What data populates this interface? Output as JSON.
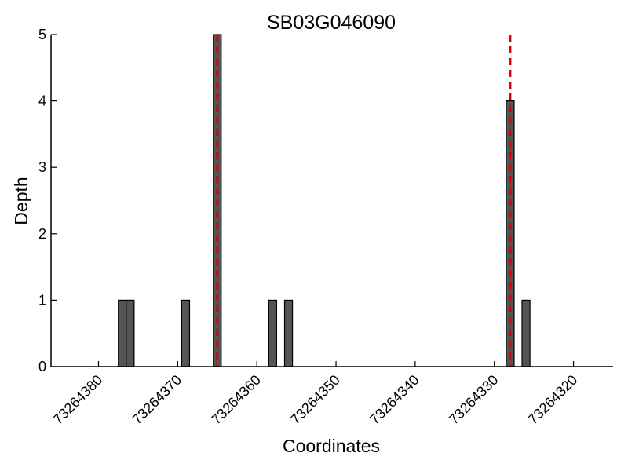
{
  "chart_data": {
    "type": "bar",
    "title": "SB03G046090",
    "xlabel": "Coordinates",
    "ylabel": "Depth",
    "x_reversed": true,
    "xlim": [
      73264386,
      73264315
    ],
    "ylim": [
      0,
      5
    ],
    "xticks": [
      73264380,
      73264370,
      73264360,
      73264350,
      73264340,
      73264330,
      73264320
    ],
    "yticks": [
      0,
      1,
      2,
      3,
      4,
      5
    ],
    "bar_width": 1,
    "bar_color": "#555555",
    "bars": [
      {
        "x": 73264377,
        "value": 1
      },
      {
        "x": 73264376,
        "value": 1
      },
      {
        "x": 73264369,
        "value": 1
      },
      {
        "x": 73264365,
        "value": 5
      },
      {
        "x": 73264358,
        "value": 1
      },
      {
        "x": 73264356,
        "value": 1
      },
      {
        "x": 73264328,
        "value": 4
      },
      {
        "x": 73264326,
        "value": 1
      }
    ],
    "markers": {
      "style": "dashed",
      "color": "#dd0000",
      "x": [
        73264365,
        73264328
      ]
    },
    "grid": false,
    "legend": "none"
  }
}
